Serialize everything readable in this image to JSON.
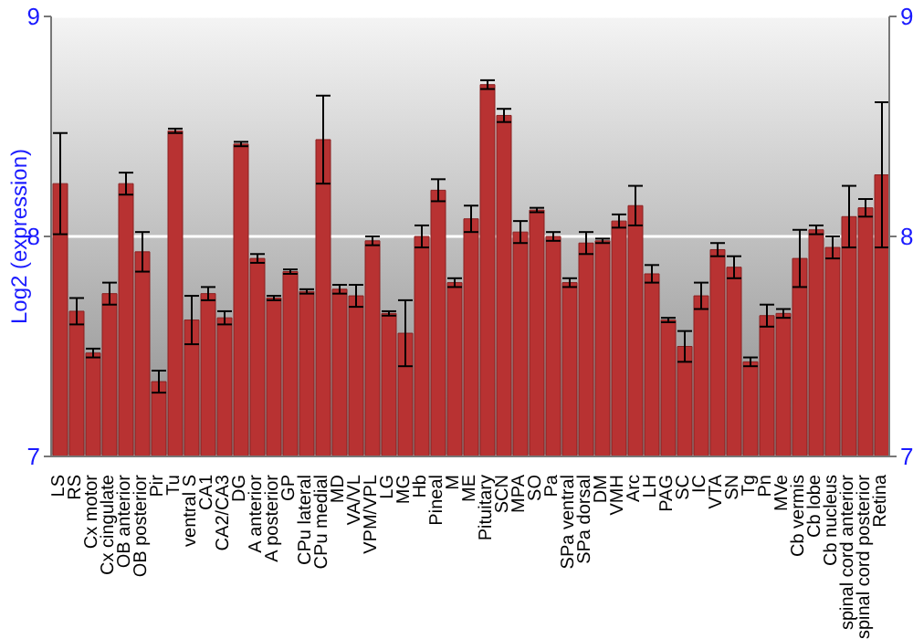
{
  "chart_data": {
    "type": "bar",
    "ylabel": "Log2 (expression)",
    "categories": [
      "LS",
      "RS",
      "Cx motor",
      "Cx cingulate",
      "OB anterior",
      "OB posterior",
      "Pir",
      "Tu",
      "ventral S",
      "CA1",
      "CA2/CA3",
      "DG",
      "A anterior",
      "A posterior",
      "GP",
      "CPu lateral",
      "CPu medial",
      "MD",
      "VA/VL",
      "VPM/VPL",
      "LG",
      "MG",
      "Hb",
      "Pineal",
      "M",
      "ME",
      "Pituitary",
      "SCN",
      "MPA",
      "SO",
      "Pa",
      "SPa ventral",
      "SPa dorsal",
      "DM",
      "VMH",
      "Arc",
      "LH",
      "PAG",
      "SC",
      "IC",
      "VTA",
      "SN",
      "Tg",
      "Pn",
      "MVe",
      "Cb vermis",
      "Cb lobe",
      "Cb nucleus",
      "spinal cord anterior",
      "spinal cord posterior",
      "Retina"
    ],
    "values": [
      8.24,
      7.66,
      7.47,
      7.74,
      8.24,
      7.93,
      7.34,
      8.48,
      7.62,
      7.74,
      7.63,
      8.42,
      7.9,
      7.72,
      7.84,
      7.75,
      8.44,
      7.76,
      7.73,
      7.98,
      7.65,
      7.56,
      8.0,
      8.21,
      7.79,
      8.08,
      8.69,
      8.55,
      8.02,
      8.12,
      8.0,
      7.79,
      7.97,
      7.98,
      8.07,
      8.14,
      7.83,
      7.62,
      7.5,
      7.73,
      7.94,
      7.86,
      7.43,
      7.64,
      7.65,
      7.9,
      8.03,
      7.95,
      8.09,
      8.13,
      8.28
    ],
    "errors": [
      0.23,
      0.06,
      0.02,
      0.05,
      0.05,
      0.09,
      0.05,
      0.01,
      0.11,
      0.03,
      0.03,
      0.01,
      0.02,
      0.01,
      0.01,
      0.01,
      0.2,
      0.02,
      0.05,
      0.02,
      0.01,
      0.15,
      0.05,
      0.05,
      0.02,
      0.06,
      0.02,
      0.03,
      0.05,
      0.01,
      0.02,
      0.02,
      0.05,
      0.01,
      0.03,
      0.09,
      0.04,
      0.01,
      0.07,
      0.06,
      0.03,
      0.05,
      0.02,
      0.05,
      0.02,
      0.13,
      0.02,
      0.05,
      0.14,
      0.04,
      0.33
    ],
    "color": "#b83232",
    "ylim": [
      7,
      9
    ],
    "yticks": [
      7,
      8,
      9
    ],
    "y2lim": [
      7,
      9
    ],
    "y2ticks": [
      7,
      8,
      9
    ],
    "grid": "y"
  }
}
